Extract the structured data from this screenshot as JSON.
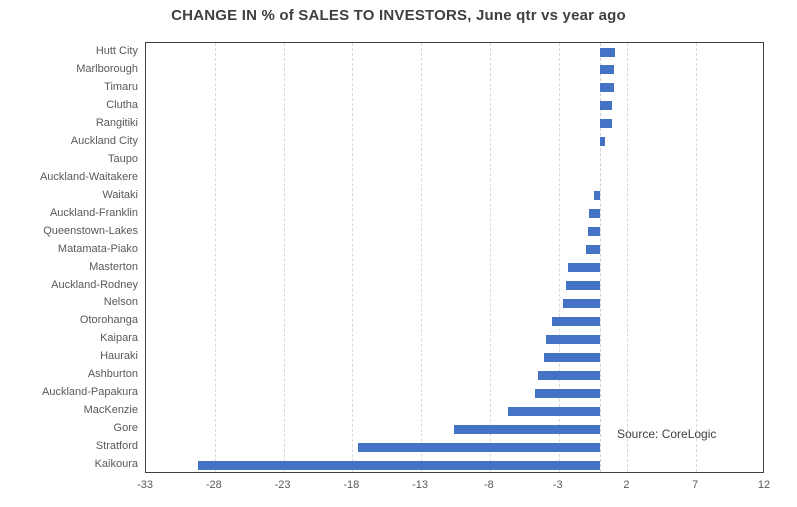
{
  "chart_data": {
    "type": "bar",
    "orientation": "horizontal",
    "title": "CHANGE IN % of SALES TO INVESTORS, June qtr vs year ago",
    "categories": [
      "Hutt City",
      "Marlborough",
      "Timaru",
      "Clutha",
      "Rangitiki",
      "Auckland City",
      "Taupo",
      "Auckland-Waitakere",
      "Waitaki",
      "Auckland-Franklin",
      "Queenstown-Lakes",
      "Matamata-Piako",
      "Masterton",
      "Auckland-Rodney",
      "Nelson",
      "Otorohanga",
      "Kaipara",
      "Hauraki",
      "Ashburton",
      "Auckland-Papakura",
      "MacKenzie",
      "Gore",
      "Stratford",
      "Kaikoura"
    ],
    "values": [
      1.1,
      1.0,
      1.0,
      0.9,
      0.85,
      0.4,
      0.0,
      0.0,
      -0.4,
      -0.8,
      -0.85,
      -1.0,
      -2.3,
      -2.5,
      -2.7,
      -3.5,
      -3.9,
      -4.1,
      -4.5,
      -4.7,
      -6.7,
      -10.6,
      -17.6,
      -29.2
    ],
    "xlabel": "",
    "ylabel": "",
    "xlim": [
      -33,
      12
    ],
    "x_ticks": [
      -33,
      -28,
      -23,
      -18,
      -13,
      -8,
      -3,
      2,
      7,
      12
    ],
    "grid": true,
    "annotation": "Source: CoreLogic",
    "bar_color": "#4472C4",
    "gridline_color": "#d9d9d9",
    "axis_text_color": "#595959",
    "title_color": "#404040"
  }
}
